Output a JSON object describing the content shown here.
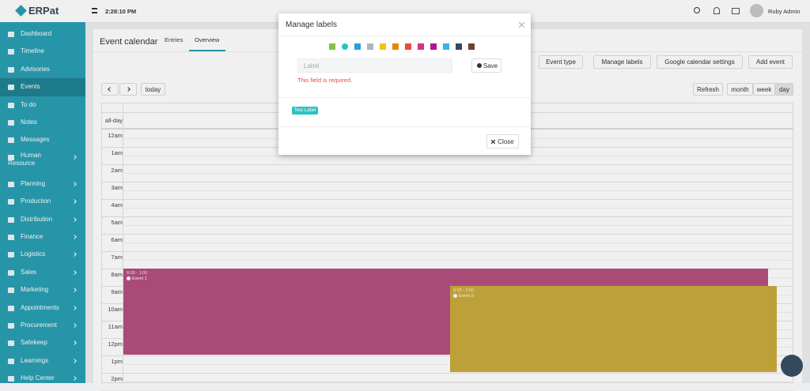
{
  "app": {
    "logo": "ERPat",
    "time": "2:28:10 PM",
    "user": "Ruby Admin"
  },
  "sidebar": [
    "Dashboard",
    "Timeline",
    "Advisories",
    "Events",
    "To do",
    "Notes",
    "Messages",
    "Human Resource",
    "Planning",
    "Production",
    "Distribution",
    "Finance",
    "Logistics",
    "Sales",
    "Marketing",
    "Appointments",
    "Procurement",
    "Safekeep",
    "Learnings",
    "Help Center"
  ],
  "page": {
    "title": "Event calendar",
    "tabs": [
      "Entries",
      "Overview"
    ],
    "actions": [
      "Event type",
      "Manage labels",
      "Google calendar settings",
      "Add event"
    ],
    "today": "today",
    "refresh": "Refresh",
    "views": [
      "month",
      "week",
      "day"
    ]
  },
  "calendar": {
    "all_day": "all-day",
    "hours": [
      "12am",
      "1am",
      "2am",
      "3am",
      "4am",
      "5am",
      "6am",
      "7am",
      "8am",
      "9am",
      "10am",
      "11am",
      "12pm",
      "1pm",
      "2pm"
    ],
    "events": [
      {
        "time": "8:00 - 1:00",
        "title": "Event 1",
        "color": "#b5507f"
      },
      {
        "time": "9:00 - 2:00",
        "title": "Event 2",
        "color": "#c9aa3c"
      }
    ]
  },
  "modal": {
    "title": "Manage labels",
    "label_colors": [
      "#83c340",
      "#29c2c2",
      "#2d9cdb",
      "#aab7b7",
      "#f1c40f",
      "#e18a00",
      "#e74c3c",
      "#d43480",
      "#ad159e",
      "#37b4e1",
      "#34495e",
      "#6b4033"
    ],
    "placeholder": "Label",
    "save": "Save",
    "error": "This field is required.",
    "labels": [
      "Test Label"
    ],
    "close": "Close"
  }
}
